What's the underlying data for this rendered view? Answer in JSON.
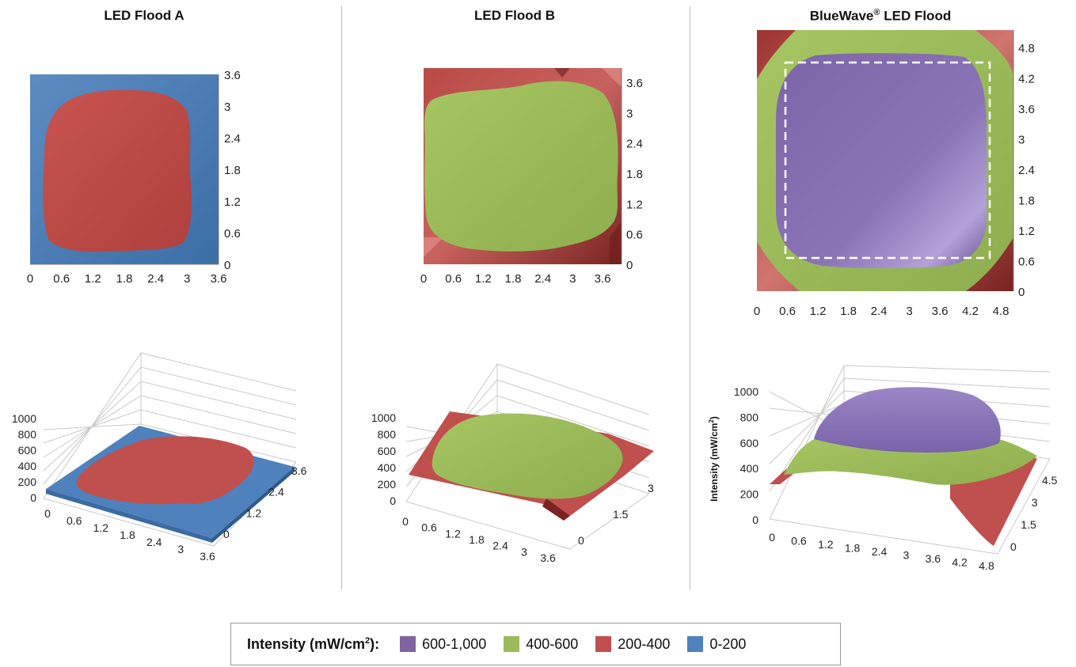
{
  "panels": [
    {
      "title": "LED Flood A",
      "title_sup": ""
    },
    {
      "title": "LED Flood B",
      "title_sup": ""
    },
    {
      "title": "BlueWave",
      "title_sup": "®",
      "title_suffix": " LED Flood"
    }
  ],
  "legend": {
    "title": "Intensity (mW/cm",
    "title_sup": "2",
    "title_end": "):",
    "items": [
      {
        "label": "600-1,000",
        "color": "#8064a2"
      },
      {
        "label": "400-600",
        "color": "#9bbb59"
      },
      {
        "label": "200-400",
        "color": "#c0504d"
      },
      {
        "label": "0-200",
        "color": "#4f81bd"
      }
    ]
  },
  "chart_data": [
    {
      "type": "heatmap",
      "panel": "LED Flood A",
      "view": "top-down contour",
      "x_ticks": [
        "0",
        "0.6",
        "1.2",
        "1.8",
        "2.4",
        "3",
        "3.6"
      ],
      "y_ticks": [
        "0",
        "0.6",
        "1.2",
        "1.8",
        "2.4",
        "3",
        "3.6"
      ],
      "xlim": [
        0,
        3.6
      ],
      "ylim": [
        0,
        3.6
      ],
      "bands_present": [
        "0-200",
        "200-400"
      ],
      "center_band": "200-400",
      "region_200_400": {
        "x": [
          0.3,
          3.1
        ],
        "y": [
          0.3,
          3.3
        ]
      }
    },
    {
      "type": "heatmap",
      "panel": "LED Flood B",
      "view": "top-down contour",
      "x_ticks": [
        "0",
        "0.6",
        "1.2",
        "1.8",
        "2.4",
        "3",
        "3.6"
      ],
      "y_ticks": [
        "0",
        "0.6",
        "1.2",
        "1.8",
        "2.4",
        "3",
        "3.6"
      ],
      "xlim": [
        0,
        3.9
      ],
      "ylim": [
        0,
        3.9
      ],
      "bands_present": [
        "200-400",
        "400-600"
      ],
      "center_band": "400-600",
      "region_400_600": {
        "x": [
          0.1,
          3.6
        ],
        "y": [
          0.3,
          3.5
        ]
      }
    },
    {
      "type": "heatmap",
      "panel": "BlueWave LED Flood",
      "view": "top-down contour",
      "x_ticks": [
        "0",
        "0.6",
        "1.2",
        "1.8",
        "2.4",
        "3",
        "3.6",
        "4.2",
        "4.8"
      ],
      "y_ticks": [
        "0",
        "0.6",
        "1.2",
        "1.8",
        "2.4",
        "3",
        "3.6",
        "4.2",
        "4.8"
      ],
      "xlim": [
        0,
        5.1
      ],
      "ylim": [
        0,
        5.1
      ],
      "bands_present": [
        "200-400",
        "400-600",
        "600-1,000"
      ],
      "center_band": "600-1,000",
      "region_600_1000": {
        "x": [
          0.4,
          4.6
        ],
        "y": [
          0.5,
          4.6
        ]
      },
      "dashed_box": {
        "x": [
          0.6,
          4.5
        ],
        "y": [
          0.6,
          4.5
        ]
      }
    },
    {
      "type": "surface",
      "panel": "LED Flood A",
      "z_ticks": [
        "0",
        "200",
        "400",
        "600",
        "800",
        "1000"
      ],
      "x_ticks": [
        "0",
        "0.6",
        "1.2",
        "1.8",
        "2.4",
        "3",
        "3.6"
      ],
      "y_ticks": [
        "0",
        "1.2",
        "2.4",
        "3.6"
      ],
      "zlim": [
        0,
        1000
      ],
      "peak_intensity": 350
    },
    {
      "type": "surface",
      "panel": "LED Flood B",
      "z_ticks": [
        "0",
        "200",
        "400",
        "600",
        "800",
        "1000"
      ],
      "x_ticks": [
        "0",
        "0.6",
        "1.2",
        "1.8",
        "2.4",
        "3",
        "3.6"
      ],
      "y_ticks": [
        "0",
        "1.5",
        "3"
      ],
      "zlim": [
        0,
        1000
      ],
      "peak_intensity": 580
    },
    {
      "type": "surface",
      "panel": "BlueWave LED Flood",
      "zlabel": "Intensity (mW/cm",
      "zlabel_sup": "2",
      "zlabel_end": ")",
      "z_ticks": [
        "0",
        "200",
        "400",
        "600",
        "800",
        "1000"
      ],
      "x_ticks": [
        "0",
        "0.6",
        "1.2",
        "1.8",
        "2.4",
        "3",
        "3.6",
        "4.2",
        "4.8"
      ],
      "y_ticks": [
        "0",
        "1.5",
        "3",
        "4.5"
      ],
      "zlim": [
        0,
        1000
      ],
      "peak_intensity": 980
    }
  ]
}
